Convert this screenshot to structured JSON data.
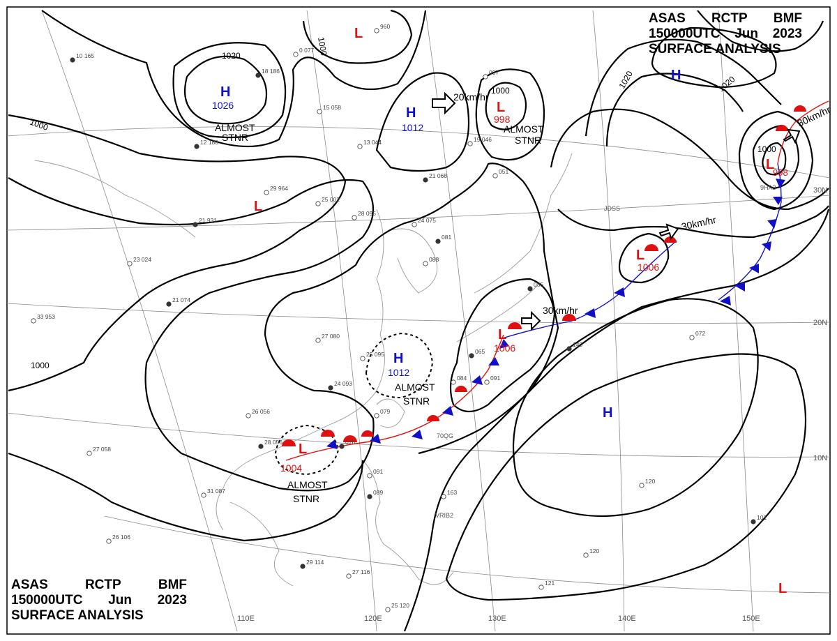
{
  "header": {
    "line1": [
      "ASAS",
      "RCTP",
      "BMF"
    ],
    "line2": [
      "150000UTC",
      "Jun",
      "2023"
    ],
    "line3": "SURFACE ANALYSIS"
  },
  "colors": {
    "high": "#1010c8",
    "low": "#e01010",
    "warm_front": "#e01010",
    "cold_front": "#1010c8",
    "isobar": "#000000",
    "grid": "#888888"
  },
  "longitude_labels": [
    "110E",
    "120E",
    "130E",
    "140E",
    "150E"
  ],
  "latitude_labels": [
    "30N",
    "20N",
    "10N"
  ],
  "pressure_systems": [
    {
      "type": "H",
      "value": "1026",
      "note": ""
    },
    {
      "type": "L",
      "value": "",
      "note": ""
    },
    {
      "type": "L",
      "value": "",
      "note": ""
    },
    {
      "type": "H",
      "value": "1012",
      "note": ""
    },
    {
      "type": "L",
      "value": "998",
      "note": "ALMOST STNR"
    },
    {
      "type": "H",
      "value": "",
      "note": ""
    },
    {
      "type": "L",
      "value": "998",
      "note": ""
    },
    {
      "type": "L",
      "value": "1006",
      "note": ""
    },
    {
      "type": "L",
      "value": "1006",
      "note": ""
    },
    {
      "type": "H",
      "value": "1012",
      "note": "ALMOST STNR"
    },
    {
      "type": "L",
      "value": "1004",
      "note": "ALMOST STNR"
    },
    {
      "type": "H",
      "value": "",
      "note": ""
    },
    {
      "type": "L",
      "value": "",
      "note": ""
    }
  ],
  "notes": {
    "almost": "ALMOST",
    "stnr": "STNR"
  },
  "isobar_labels": [
    "1020",
    "1000",
    "1000",
    "1000",
    "1020",
    "1020",
    "1000",
    "1000"
  ],
  "motion_vectors": [
    "20km/hr",
    "30km/hr",
    "30km/hr",
    "30km/hr"
  ],
  "station_plots": [
    "10 165",
    "0 077",
    "960",
    "18 186",
    "15 058",
    "13 044",
    "21 068",
    "19 046",
    "051",
    "12 188",
    "29 964",
    "25 002",
    "21 931",
    "28 095",
    "24 075",
    "081",
    "23 024",
    "33 953",
    "21 074",
    "27 080",
    "25 095",
    "24 093",
    "26 056",
    "27 058",
    "28 056",
    "31 087",
    "26 106",
    "29 114",
    "27 116",
    "25 120",
    "076",
    "079",
    "091",
    "089",
    "163",
    "120",
    "101",
    "120",
    "121",
    "065",
    "084",
    "091",
    "149",
    "072",
    "088",
    "085",
    "097"
  ],
  "station_ids": [
    "JDSS",
    "9HA3",
    "VRIB2",
    "70QG"
  ]
}
